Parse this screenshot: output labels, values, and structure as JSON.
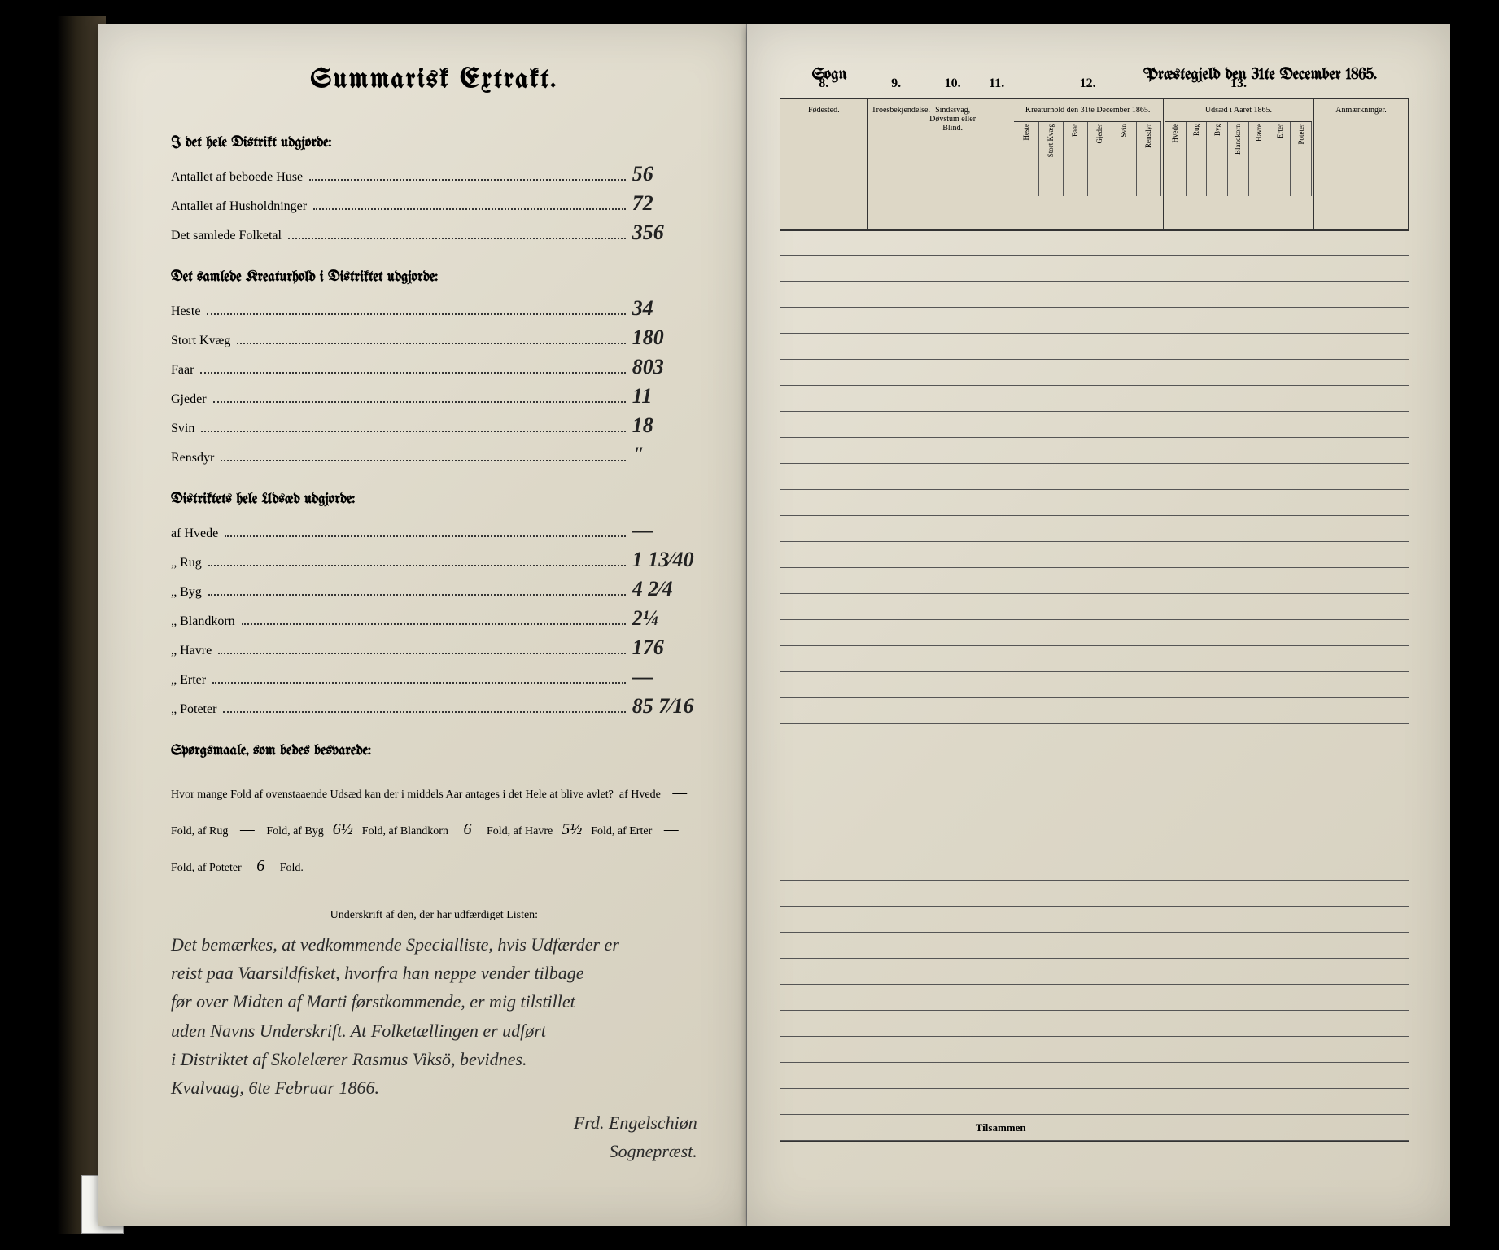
{
  "left": {
    "title": "Summarisk Extrakt.",
    "section1": {
      "heading": "I det hele Distrikt udgjorde:",
      "rows": [
        {
          "label": "Antallet af beboede Huse",
          "value": "56"
        },
        {
          "label": "Antallet af Husholdninger",
          "value": "72"
        },
        {
          "label": "Det samlede Folketal",
          "value": "356"
        }
      ]
    },
    "section2": {
      "heading": "Det samlede Kreaturhold i Distriktet udgjorde:",
      "rows": [
        {
          "label": "Heste",
          "value": "34"
        },
        {
          "label": "Stort Kvæg",
          "value": "180"
        },
        {
          "label": "Faar",
          "value": "803"
        },
        {
          "label": "Gjeder",
          "value": "11"
        },
        {
          "label": "Svin",
          "value": "18"
        },
        {
          "label": "Rensdyr",
          "value": "\""
        }
      ]
    },
    "section3": {
      "heading": "Distriktets hele Udsæd udgjorde:",
      "rows": [
        {
          "label": "af Hvede",
          "value": "—"
        },
        {
          "label": "„ Rug",
          "value": "1 13⁄40"
        },
        {
          "label": "„ Byg",
          "value": "4 2⁄4"
        },
        {
          "label": "„ Blandkorn",
          "value": "2¼"
        },
        {
          "label": "„ Havre",
          "value": "176"
        },
        {
          "label": "„ Erter",
          "value": "—"
        },
        {
          "label": "„ Poteter",
          "value": "85 7⁄16"
        }
      ]
    },
    "section4": {
      "heading": "Spørgsmaale, som bedes besvarede:",
      "question": "Hvor mange Fold af ovenstaaende Udsæd kan der i middels Aar antages i det Hele at blive avlet?",
      "answers": {
        "hvede": "—",
        "rug": "—",
        "byg": "6½",
        "blandkorn": "6",
        "havre": "5½",
        "erter": "—",
        "poteter": "6"
      }
    },
    "undersk_label": "Underskrift af den, der har udfærdiget Listen:",
    "handwriting_lines": [
      "Det bemærkes, at vedkommende Specialliste, hvis Udfærder er",
      "reist paa Vaarsildfisket, hvorfra han neppe vender tilbage",
      "før over Midten af Marti førstkommende, er mig tilstillet",
      "uden Navns Underskrift. At Folketællingen er udført",
      "i Distriktet af Skolelærer Rasmus Viksö, bevidnes.",
      "Kvalvaag, 6te Februar 1866."
    ],
    "signature": "Frd. Engelschiøn",
    "sig_title": "Sognepræst."
  },
  "right": {
    "header_left": "Sogn",
    "header_right": "Præstegjeld den 31te December 1865.",
    "columns": [
      {
        "num": "8.",
        "w": 14,
        "label": "Fødested."
      },
      {
        "num": "9.",
        "w": 9,
        "label": "Troesbekjendelse."
      },
      {
        "num": "10.",
        "w": 9,
        "label": "Sindssvag, Døvstum eller Blind."
      },
      {
        "num": "11.",
        "w": 5,
        "label": ""
      },
      {
        "num": "12.",
        "w": 24,
        "label": "Kreaturhold den 31te December 1865.",
        "subs": [
          "Heste",
          "Stort Kvæg",
          "Faar",
          "Gjeder",
          "Svin",
          "Rensdyr"
        ]
      },
      {
        "num": "13.",
        "w": 24,
        "label": "Udsæd i Aaret 1865.",
        "subs": [
          "Hvede",
          "Rug",
          "Byg",
          "Blandkorn",
          "Havre",
          "Erter",
          "Poteter"
        ]
      },
      {
        "num": "",
        "w": 15,
        "label": "Anmærkninger."
      }
    ],
    "footer": "Tilsammen"
  },
  "colors": {
    "paper": "#ddd8c8",
    "ink": "#1a1a1a",
    "rule": "#444"
  }
}
